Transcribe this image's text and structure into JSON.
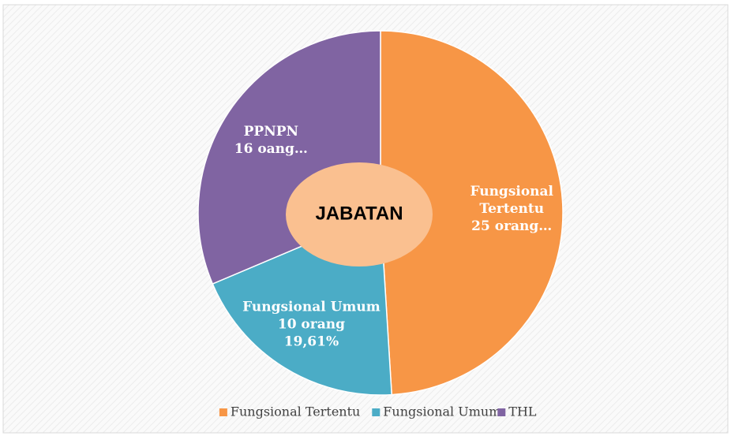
{
  "chart_data": {
    "type": "pie",
    "categories": [
      "Fungsional Tertentu",
      "Fungsional Umum",
      "THL"
    ],
    "values": [
      25,
      10,
      16
    ],
    "colors": [
      "#f79646",
      "#4bacc6",
      "#8064a2"
    ],
    "value_labels": [
      [
        "Fungsional",
        "Tertentu",
        "25 orang…"
      ],
      [
        "Fungsional Umum",
        "10 orang",
        "19,61%"
      ],
      [
        "PPNPN",
        "16 oang…"
      ]
    ],
    "center_label": "JABATAN",
    "center_color": "#fac090",
    "legend": "bottom"
  }
}
